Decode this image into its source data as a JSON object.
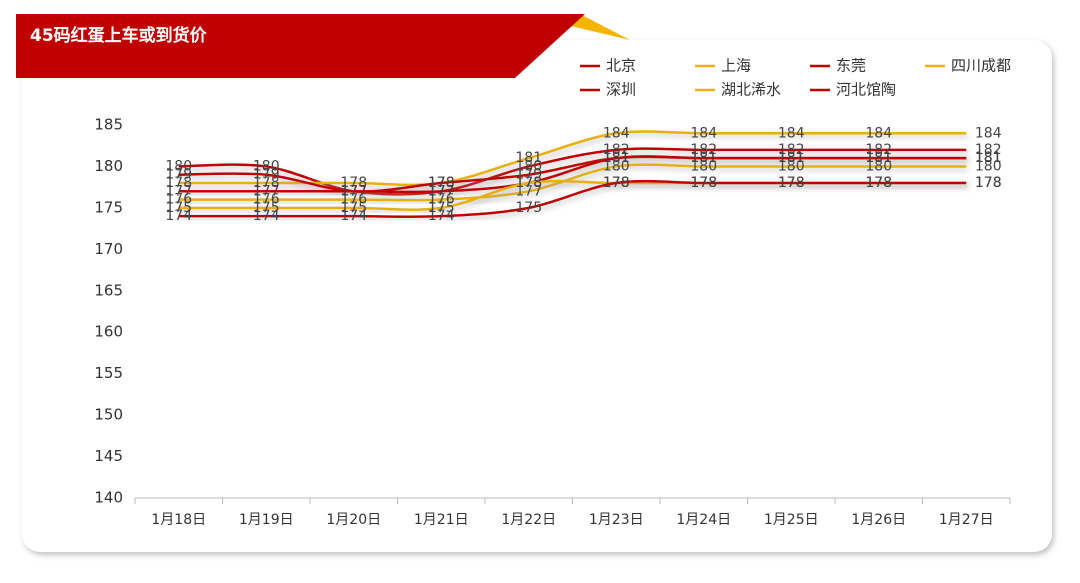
{
  "chart_data": {
    "type": "line",
    "title": "45码红蛋上车或到货价",
    "categories": [
      "1月18日",
      "1月19日",
      "1月20日",
      "1月21日",
      "1月22日",
      "1月23日",
      "1月24日",
      "1月25日",
      "1月26日",
      "1月27日"
    ],
    "series": [
      {
        "name": "北京",
        "color": "#c00000",
        "values": [
          180,
          180,
          177,
          177,
          180,
          182,
          182,
          182,
          182,
          182
        ]
      },
      {
        "name": "上海",
        "color": "#e8b010",
        "values": [
          178,
          178,
          178,
          178,
          181,
          184,
          184,
          184,
          184,
          184
        ]
      },
      {
        "name": "东莞",
        "color": "#c00000",
        "values": [
          179,
          179,
          177,
          178,
          179,
          181,
          181,
          181,
          181,
          181
        ]
      },
      {
        "name": "四川成都",
        "color": "#e8b010",
        "values": [
          176,
          176,
          176,
          176,
          177,
          180,
          180,
          180,
          180,
          180
        ]
      },
      {
        "name": "深圳",
        "color": "#c00000",
        "values": [
          177,
          177,
          177,
          177,
          178,
          181,
          181,
          181,
          181,
          181
        ]
      },
      {
        "name": "湖北浠水",
        "color": "#e8b010",
        "values": [
          175,
          175,
          175,
          175,
          178,
          178,
          178,
          178,
          178,
          178
        ]
      },
      {
        "name": "河北馆陶",
        "color": "#c00000",
        "values": [
          174,
          174,
          174,
          174,
          175,
          178,
          178,
          178,
          178,
          178
        ]
      }
    ],
    "ylim": [
      140,
      185
    ],
    "yticks": [
      140,
      145,
      150,
      155,
      160,
      165,
      170,
      175,
      180,
      185
    ]
  }
}
